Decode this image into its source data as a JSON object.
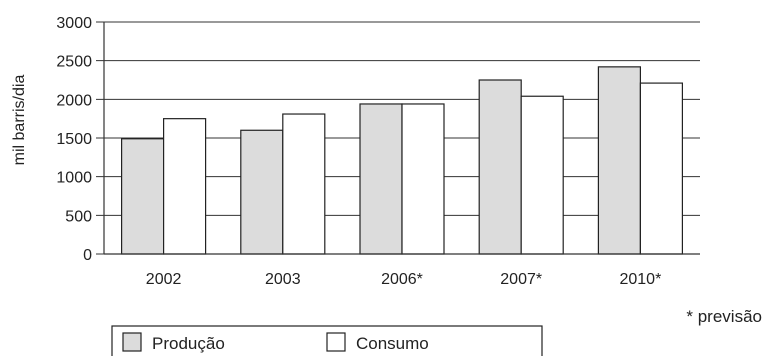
{
  "chart_data": {
    "type": "bar",
    "categories": [
      "2002",
      "2003",
      "2006*",
      "2007*",
      "2010*"
    ],
    "series": [
      {
        "name": "Produção",
        "values": [
          1490,
          1600,
          1940,
          2250,
          2420
        ],
        "color": "#dcdcdc"
      },
      {
        "name": "Consumo",
        "values": [
          1750,
          1810,
          1940,
          2040,
          2210
        ],
        "color": "#ffffff"
      }
    ],
    "ylabel": "mil barris/dia",
    "ylim": [
      0,
      3000
    ],
    "yticks": [
      "0",
      "500",
      "1000",
      "1500",
      "2000",
      "2500",
      "3000"
    ],
    "grid": true,
    "legend_position": "bottom",
    "note": "* previsão"
  }
}
